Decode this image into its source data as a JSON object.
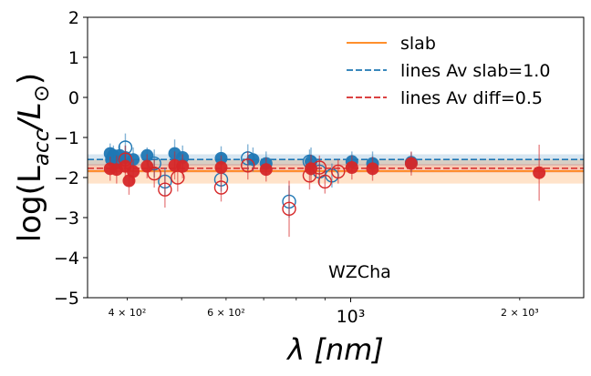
{
  "chart_data": {
    "type": "scatter",
    "title": "",
    "xlabel": "λ [nm]",
    "ylabel_main": "log(L",
    "ylabel_sub": "acc",
    "ylabel_rest": "/L",
    "ylabel_sun": "⊙",
    "ylabel_close": ")",
    "xscale": "log",
    "xlim": [
      340,
      2600
    ],
    "ylim": [
      -5,
      2
    ],
    "x_major_ticks": [
      {
        "value": 1000,
        "label": "10³"
      }
    ],
    "x_minor_ticks": [
      {
        "value": 400,
        "label": "4 × 10²"
      },
      {
        "value": 600,
        "label": "6 × 10²"
      },
      {
        "value": 2000,
        "label": "2 × 10³"
      },
      {
        "value": 500,
        "label": ""
      },
      {
        "value": 700,
        "label": ""
      },
      {
        "value": 800,
        "label": ""
      },
      {
        "value": 900,
        "label": ""
      }
    ],
    "y_ticks": [
      {
        "value": 2,
        "label": "2"
      },
      {
        "value": 1,
        "label": "1"
      },
      {
        "value": 0,
        "label": "0"
      },
      {
        "value": -1,
        "label": "−1"
      },
      {
        "value": -2,
        "label": "−2"
      },
      {
        "value": -3,
        "label": "−3"
      },
      {
        "value": -4,
        "label": "−4"
      },
      {
        "value": -5,
        "label": "−5"
      }
    ],
    "annotation": "WZCha",
    "legend_position": "upper-right",
    "legend": [
      {
        "label": "slab",
        "color": "#ff7f0e",
        "style": "solid"
      },
      {
        "label": "lines Av slab=1.0",
        "color": "#1f77b4",
        "style": "dashed"
      },
      {
        "label": "lines Av diff=0.5",
        "color": "#d62728",
        "style": "dashed"
      }
    ],
    "series": [
      {
        "name": "slab",
        "kind": "hline",
        "color": "#ff7f0e",
        "value": -1.84,
        "band": [
          -2.15,
          -1.55
        ]
      },
      {
        "name": "lines Av slab=1.0",
        "kind": "hline",
        "color": "#1f77b4",
        "value": -1.55,
        "band": [
          -1.7,
          -1.42
        ]
      },
      {
        "name": "lines Av diff=0.5",
        "kind": "hline",
        "color": "#d62728",
        "value": -1.77,
        "band": [
          -1.88,
          -1.66
        ]
      },
      {
        "name": "lines Av slab=1.0 (filled)",
        "color": "#1f77b4",
        "filled": true,
        "points": [
          {
            "x": 373,
            "y": -1.4,
            "err": 0.25
          },
          {
            "x": 375,
            "y": -1.55,
            "err": 0.3
          },
          {
            "x": 378,
            "y": -1.45,
            "err": 0.25
          },
          {
            "x": 383,
            "y": -1.6,
            "err": 0.3
          },
          {
            "x": 388,
            "y": -1.45,
            "err": 0.25
          },
          {
            "x": 397,
            "y": -1.5,
            "err": 0.3
          },
          {
            "x": 410,
            "y": -1.55,
            "err": 0.3
          },
          {
            "x": 434,
            "y": -1.45,
            "err": 0.2
          },
          {
            "x": 486,
            "y": -1.4,
            "err": 0.35
          },
          {
            "x": 502,
            "y": -1.5,
            "err": 0.3
          },
          {
            "x": 588,
            "y": -1.52,
            "err": 0.3
          },
          {
            "x": 670,
            "y": -1.55,
            "err": 0.3
          },
          {
            "x": 707,
            "y": -1.65,
            "err": 0.3
          },
          {
            "x": 850,
            "y": -1.6,
            "err": 0.35
          },
          {
            "x": 1005,
            "y": -1.6,
            "err": 0.25
          },
          {
            "x": 1094,
            "y": -1.65,
            "err": 0.3
          },
          {
            "x": 1282,
            "y": -1.62,
            "err": 0.25
          }
        ]
      },
      {
        "name": "lines Av slab=1.0 (open)",
        "color": "#1f77b4",
        "filled": false,
        "points": [
          {
            "x": 397,
            "y": -1.25,
            "err": 0.35
          },
          {
            "x": 447,
            "y": -1.65,
            "err": 0.35
          },
          {
            "x": 467,
            "y": -2.1,
            "err": 0.35
          },
          {
            "x": 588,
            "y": -2.05,
            "err": 0.3
          },
          {
            "x": 656,
            "y": -1.52,
            "err": 0.35
          },
          {
            "x": 777,
            "y": -2.6,
            "err": 0.4
          },
          {
            "x": 845,
            "y": -1.6,
            "err": 0.3
          },
          {
            "x": 880,
            "y": -1.85,
            "err": 0.3
          },
          {
            "x": 926,
            "y": -1.95,
            "err": 0.3
          }
        ]
      },
      {
        "name": "lines Av diff=0.5 (filled)",
        "color": "#d62728",
        "filled": true,
        "points": [
          {
            "x": 373,
            "y": -1.78,
            "err": 0.3
          },
          {
            "x": 383,
            "y": -1.8,
            "err": 0.35
          },
          {
            "x": 397,
            "y": -1.72,
            "err": 0.3
          },
          {
            "x": 403,
            "y": -2.08,
            "err": 0.35
          },
          {
            "x": 410,
            "y": -1.85,
            "err": 0.3
          },
          {
            "x": 434,
            "y": -1.72,
            "err": 0.3
          },
          {
            "x": 486,
            "y": -1.7,
            "err": 0.35
          },
          {
            "x": 502,
            "y": -1.72,
            "err": 0.3
          },
          {
            "x": 588,
            "y": -1.75,
            "err": 0.3
          },
          {
            "x": 707,
            "y": -1.8,
            "err": 0.3
          },
          {
            "x": 850,
            "y": -1.78,
            "err": 0.35
          },
          {
            "x": 1005,
            "y": -1.75,
            "err": 0.3
          },
          {
            "x": 1094,
            "y": -1.78,
            "err": 0.3
          },
          {
            "x": 1282,
            "y": -1.65,
            "err": 0.3
          },
          {
            "x": 2166,
            "y": -1.88,
            "err": 0.7
          }
        ]
      },
      {
        "name": "lines Av diff=0.5 (open)",
        "color": "#d62728",
        "filled": false,
        "points": [
          {
            "x": 397,
            "y": -1.55,
            "err": 0.35
          },
          {
            "x": 447,
            "y": -1.9,
            "err": 0.35
          },
          {
            "x": 467,
            "y": -2.3,
            "err": 0.45
          },
          {
            "x": 492,
            "y": -2.0,
            "err": 0.35
          },
          {
            "x": 588,
            "y": -2.25,
            "err": 0.35
          },
          {
            "x": 656,
            "y": -1.7,
            "err": 0.35
          },
          {
            "x": 777,
            "y": -2.78,
            "err": 0.7
          },
          {
            "x": 845,
            "y": -1.95,
            "err": 0.35
          },
          {
            "x": 880,
            "y": -1.75,
            "err": 0.3
          },
          {
            "x": 900,
            "y": -2.1,
            "err": 0.3
          },
          {
            "x": 950,
            "y": -1.85,
            "err": 0.3
          }
        ]
      }
    ]
  }
}
